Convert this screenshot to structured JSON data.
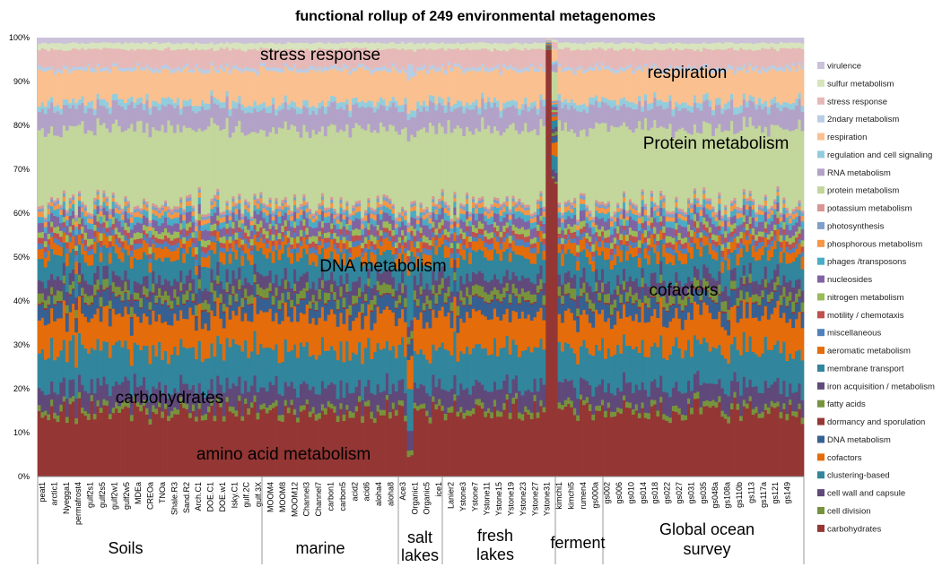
{
  "chart_data": {
    "type": "area",
    "title": "functional rollup of 249 environmental metagenomes",
    "xlabel": "",
    "ylabel": "",
    "ylim": [
      0,
      100
    ],
    "y_ticks": [
      "0%",
      "10%",
      "20%",
      "30%",
      "40%",
      "50%",
      "60%",
      "70%",
      "80%",
      "90%",
      "100%"
    ],
    "sample_count": 249,
    "sample_labels": [
      "peat1",
      "arctic1",
      "Nyegga1",
      "permafrost4",
      "gulf2s1",
      "gulf2s5",
      "gulf2w1",
      "gulf2w5",
      "MDEa",
      "CREOa",
      "TNOa",
      "Shale.R3",
      "Sand.R2",
      "Arch.C1",
      "DOE.C1",
      "DOE.w1",
      "Isky.C1",
      "gulf.2C",
      "gulf.3X",
      "MOOM4",
      "MOOM8",
      "MOOM12",
      "Channel3",
      "Channel7",
      "carbon1",
      "carbon5",
      "acid2",
      "acid6",
      "aloha4",
      "aloha8",
      "Ace3",
      "Organic1",
      "Organic5",
      "ice1",
      "Lanier2",
      "Ystone3",
      "Ystone7",
      "Ystone11",
      "Ystone15",
      "Ystone19",
      "Ystone23",
      "Ystone27",
      "Ystone31",
      "kimchi1",
      "kimchi5",
      "rumen4",
      "gs000a",
      "gs002",
      "gs006",
      "gs010",
      "gs014",
      "gs018",
      "gs022",
      "gs027",
      "gs031",
      "gs035",
      "gs048a",
      "gs108a",
      "gs110b",
      "gs113",
      "gs117a",
      "gs121",
      "gs149"
    ],
    "groups": [
      {
        "name": "Soils"
      },
      {
        "name": "marine"
      },
      {
        "name": "salt lakes"
      },
      {
        "name": "fresh lakes"
      },
      {
        "name": "ferment"
      },
      {
        "name": "Global ocean survey"
      }
    ],
    "group_ranges": [
      [
        0,
        73
      ],
      [
        73,
        118
      ],
      [
        118,
        135
      ],
      [
        135,
        172
      ],
      [
        172,
        190
      ],
      [
        190,
        249
      ]
    ],
    "categories": [
      "carbohydrates",
      "cell division",
      "cell wall and capsule",
      "clustering-based",
      "cofactors",
      "DNA metabolism",
      "dormancy and sporulation",
      "fatty acids",
      "iron acquisition / metabolism",
      "membrane transport",
      "aeromatic metabolism",
      "miscellaneous",
      "motility / chemotaxis",
      "nitrogen metabolism",
      "nucleosides",
      "phages /transposons",
      "phosphorous metabolism",
      "photosynthesis",
      "potassium metabolism",
      "protein metabolism",
      "RNA metabolism",
      "regulation and cell signaling",
      "respiration",
      "2ndary metabolism",
      "stress response",
      "sulfur metabolism",
      "virulence"
    ],
    "colors": [
      "#943634",
      "#77933C",
      "#5F497A",
      "#31859C",
      "#E46C0A",
      "#376092",
      "#953735",
      "#77933C",
      "#604A7B",
      "#31859C",
      "#E46C0A",
      "#4F81BD",
      "#C0504D",
      "#9BBB59",
      "#8064A2",
      "#4BACC6",
      "#F79646",
      "#7F9FC8",
      "#D99694",
      "#C3D69B",
      "#B3A2C7",
      "#93CDDD",
      "#FAC090",
      "#B9CDE5",
      "#E6B9B8",
      "#D7E4BD",
      "#CCC1DA"
    ],
    "mean_percent": [
      12.5,
      1.1,
      3.8,
      7.3,
      6.4,
      2.9,
      0.3,
      1.7,
      2.4,
      4.2,
      2.0,
      1.0,
      1.0,
      1.2,
      1.8,
      1.3,
      0.9,
      0.6,
      0.5,
      14.5,
      4.0,
      1.2,
      6.0,
      0.7,
      3.3,
      1.2,
      1.0
    ],
    "legend_placement": "right",
    "annotations": [
      {
        "text": "stress response"
      },
      {
        "text": "respiration"
      },
      {
        "text": "Protein metabolism"
      },
      {
        "text": "DNA metabolism"
      },
      {
        "text": "cofactors"
      },
      {
        "text": "carbohydrates"
      },
      {
        "text": "amino acid metabolism"
      }
    ]
  }
}
